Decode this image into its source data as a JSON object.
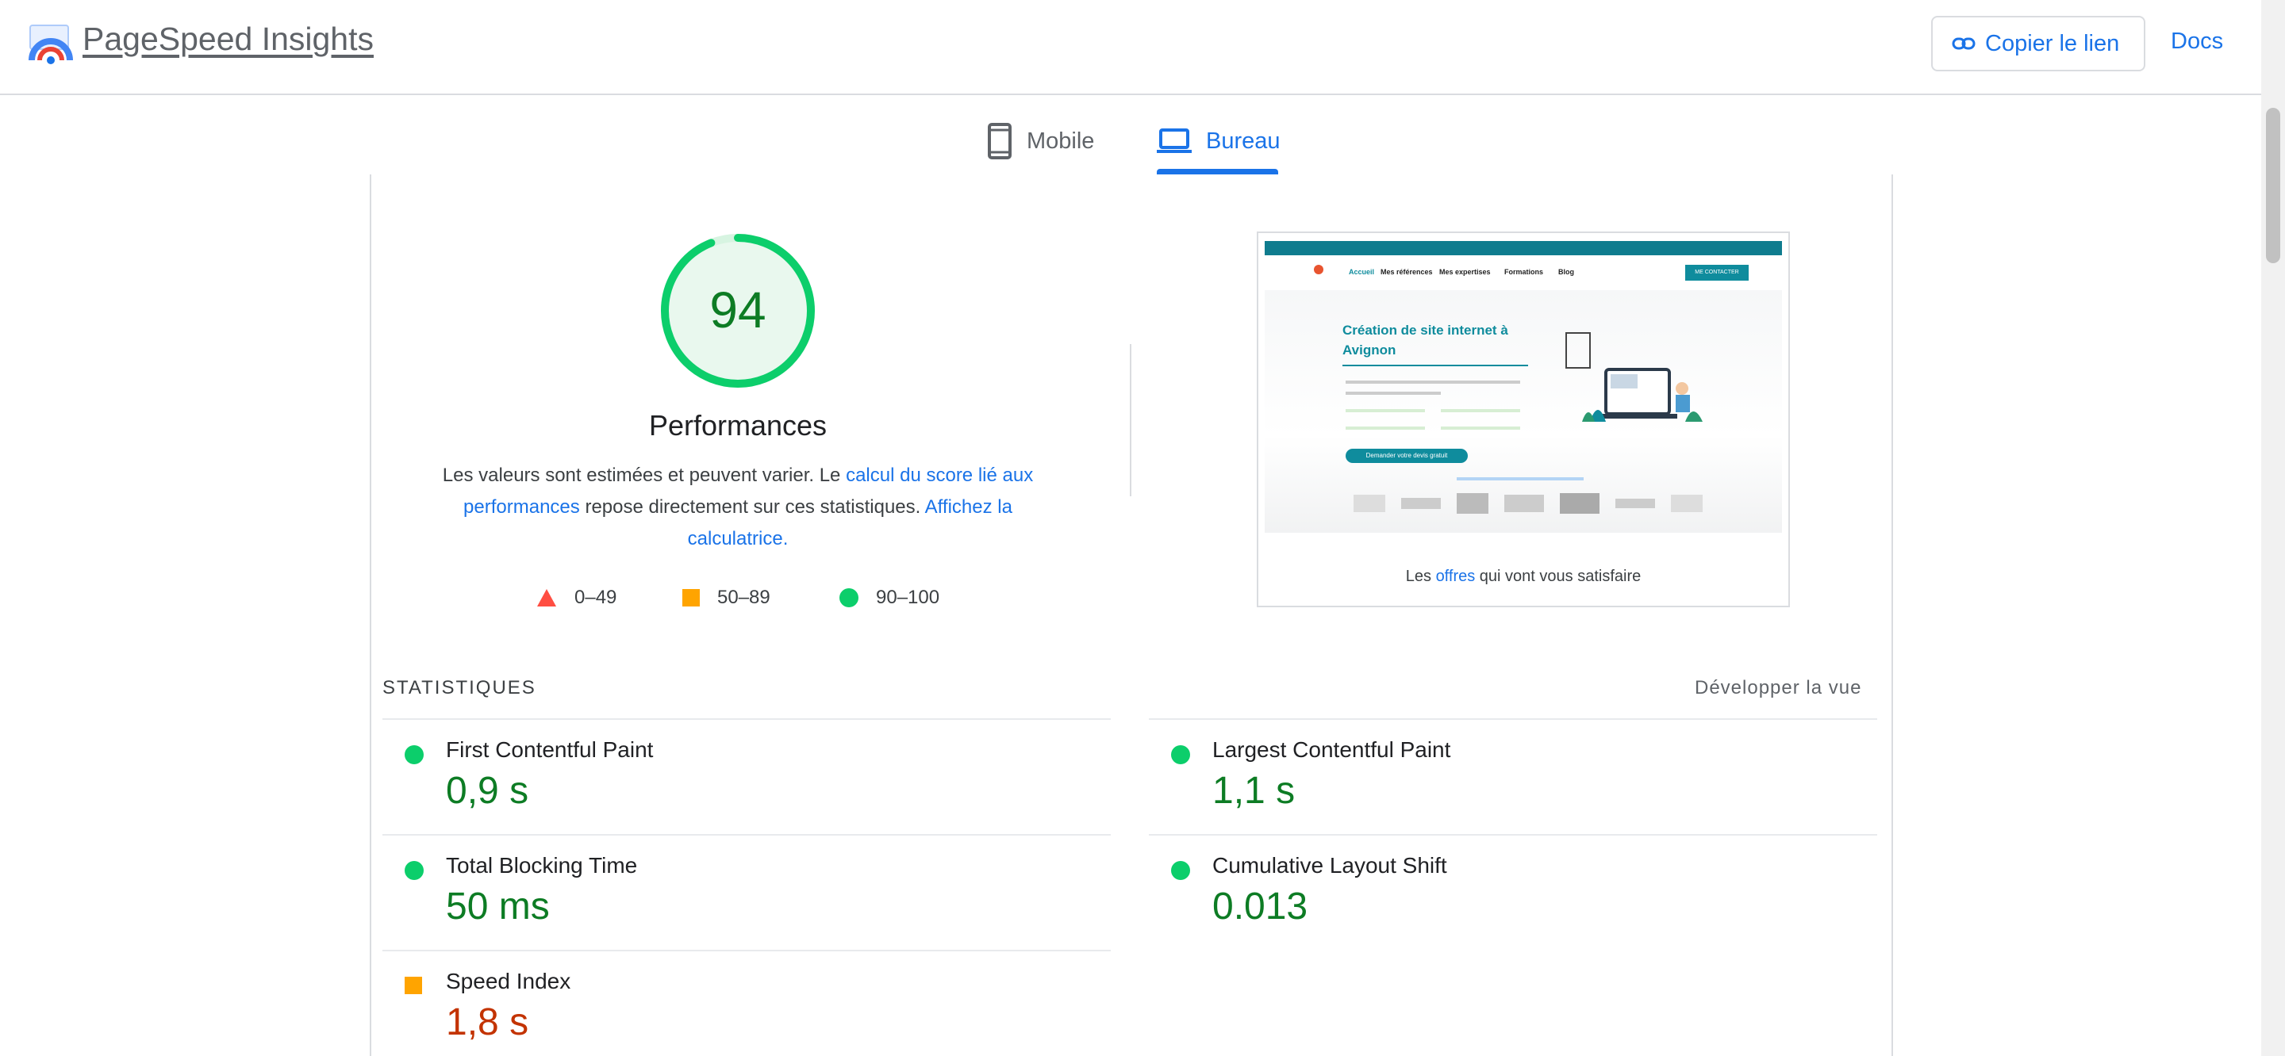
{
  "header": {
    "brand": "PageSpeed Insights",
    "copy_link": "Copier le lien",
    "docs": "Docs"
  },
  "tabs": [
    {
      "label": "Mobile",
      "icon": "phone-icon",
      "active": false
    },
    {
      "label": "Bureau",
      "icon": "laptop-icon",
      "active": true
    }
  ],
  "performance": {
    "score": "94",
    "score_value": 94,
    "title": "Performances",
    "desc_1": "Les valeurs sont estimées et peuvent varier. Le ",
    "desc_link_1": "calcul du score lié aux performances",
    "desc_2": " repose directement sur ces statistiques. ",
    "desc_link_2": "Affichez la calculatrice.",
    "legend": [
      {
        "range": "0–49",
        "shape": "triangle",
        "color": "#ff4e42"
      },
      {
        "range": "50–89",
        "shape": "square",
        "color": "#ffa400"
      },
      {
        "range": "90–100",
        "shape": "circle",
        "color": "#0cce6b"
      }
    ]
  },
  "screenshot": {
    "headline": "Création de site internet à Avignon",
    "nav": [
      "Accueil",
      "Mes références",
      "Mes expertises",
      "Formations",
      "Blog"
    ],
    "cta": "ME CONTACTER",
    "button": "Demander votre devis gratuit",
    "caption_1": "Les ",
    "caption_hl": "offres",
    "caption_2": " qui vont vous satisfaire"
  },
  "stats": {
    "heading": "STATISTIQUES",
    "expand": "Développer la vue",
    "metrics": [
      {
        "label": "First Contentful Paint",
        "value": "0,9 s",
        "status": "good"
      },
      {
        "label": "Largest Contentful Paint",
        "value": "1,1 s",
        "status": "good"
      },
      {
        "label": "Total Blocking Time",
        "value": "50 ms",
        "status": "good"
      },
      {
        "label": "Cumulative Layout Shift",
        "value": "0.013",
        "status": "good"
      },
      {
        "label": "Speed Index",
        "value": "1,8 s",
        "status": "average"
      }
    ]
  },
  "colors": {
    "accent": "#1a73e8",
    "good": "#0cce6b",
    "average": "#ffa400",
    "poor": "#ff4e42"
  }
}
